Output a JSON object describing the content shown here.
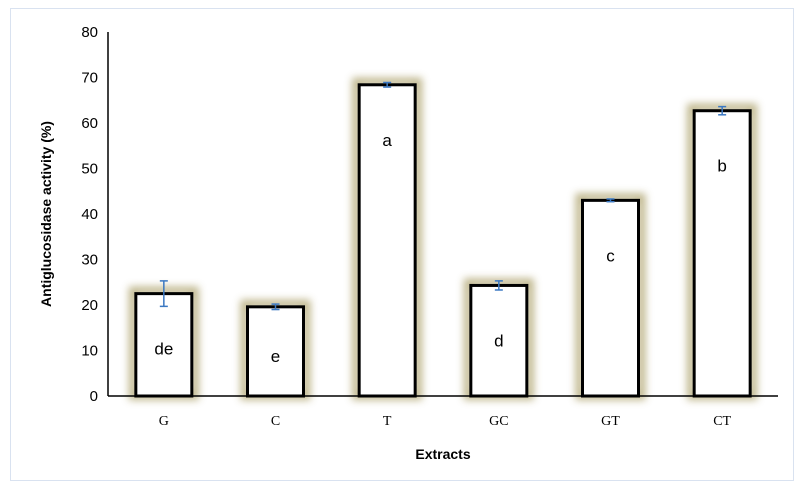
{
  "chart_data": {
    "type": "bar",
    "title": "",
    "xlabel": "Extracts",
    "ylabel": "Antiglucosidase activity (%)",
    "ylim": [
      0,
      80
    ],
    "yticks": [
      0,
      10,
      20,
      30,
      40,
      50,
      60,
      70,
      80
    ],
    "grid": false,
    "categories": [
      "G",
      "C",
      "T",
      "GC",
      "GT",
      "CT"
    ],
    "values": [
      22.5,
      19.6,
      68.4,
      24.3,
      43.0,
      62.7
    ],
    "errors": [
      2.8,
      0.6,
      0.5,
      1.0,
      0.3,
      0.9
    ],
    "letters": [
      "de",
      "e",
      "a",
      "d",
      "c",
      "b"
    ],
    "colors": {
      "bar_fill": "#ffffff",
      "bar_edge": "#000000",
      "bar_glow": "#b7ad7e",
      "error_bar": "#3b78c2",
      "axis": "#000000"
    }
  }
}
